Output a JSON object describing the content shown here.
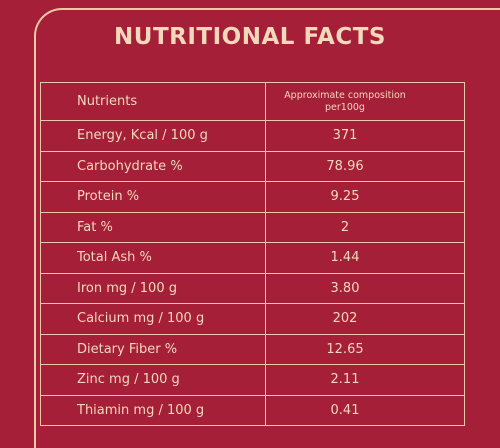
{
  "header": {
    "title": "NUTRITIONAL FACTS"
  },
  "table": {
    "columns": [
      "Nutrients",
      "Approximate composition per100g"
    ],
    "rows": [
      [
        "Energy, Kcal / 100 g",
        "371"
      ],
      [
        "Carbohydrate %",
        "78.96"
      ],
      [
        "Protein %",
        "9.25"
      ],
      [
        "Fat %",
        "2"
      ],
      [
        "Total Ash %",
        "1.44"
      ],
      [
        "Iron mg / 100 g",
        "3.80"
      ],
      [
        "Calcium mg / 100 g",
        "202"
      ],
      [
        "Dietary Fiber %",
        "12.65"
      ],
      [
        "Zinc mg / 100 g",
        "2.11"
      ],
      [
        "Thiamin mg / 100 g",
        "0.41"
      ]
    ]
  }
}
